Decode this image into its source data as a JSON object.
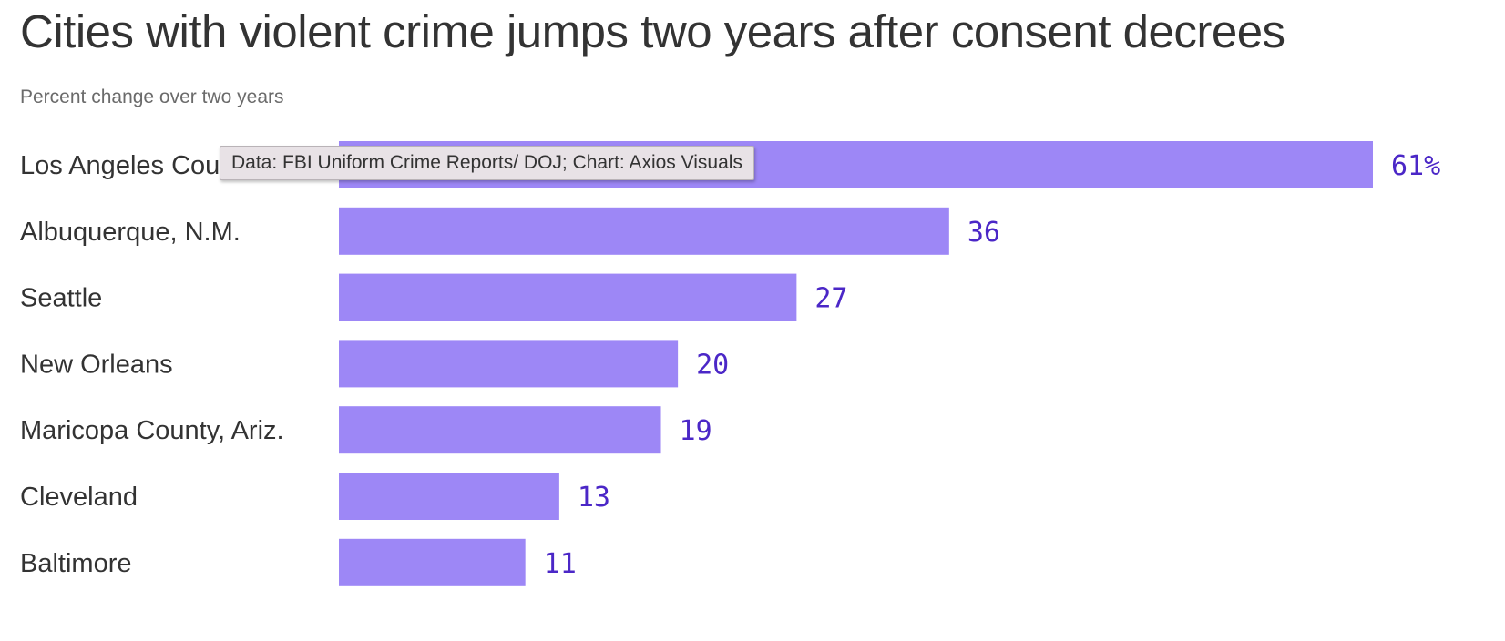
{
  "title": "Cities with violent crime jumps two years after consent decrees",
  "subtitle": "Percent change over two years",
  "tooltip": "Data: FBI Uniform Crime Reports/ DOJ; Chart: Axios Visuals",
  "colors": {
    "bar": "#9d87f6",
    "value_text": "#4b27c7",
    "label_text": "#333333"
  },
  "chart_data": {
    "type": "bar",
    "orientation": "horizontal",
    "categories": [
      "Los Angeles County",
      "Albuquerque, N.M.",
      "Seattle",
      "New Orleans",
      "Maricopa County, Ariz.",
      "Cleveland",
      "Baltimore"
    ],
    "values": [
      61,
      36,
      27,
      20,
      19,
      13,
      11
    ],
    "value_labels": [
      "61%",
      "36",
      "27",
      "20",
      "19",
      "13",
      "11"
    ],
    "title": "Cities with violent crime jumps two years after consent decrees",
    "subtitle": "Percent change over two years",
    "xlim": [
      0,
      61
    ],
    "grid": false,
    "legend": "none"
  }
}
